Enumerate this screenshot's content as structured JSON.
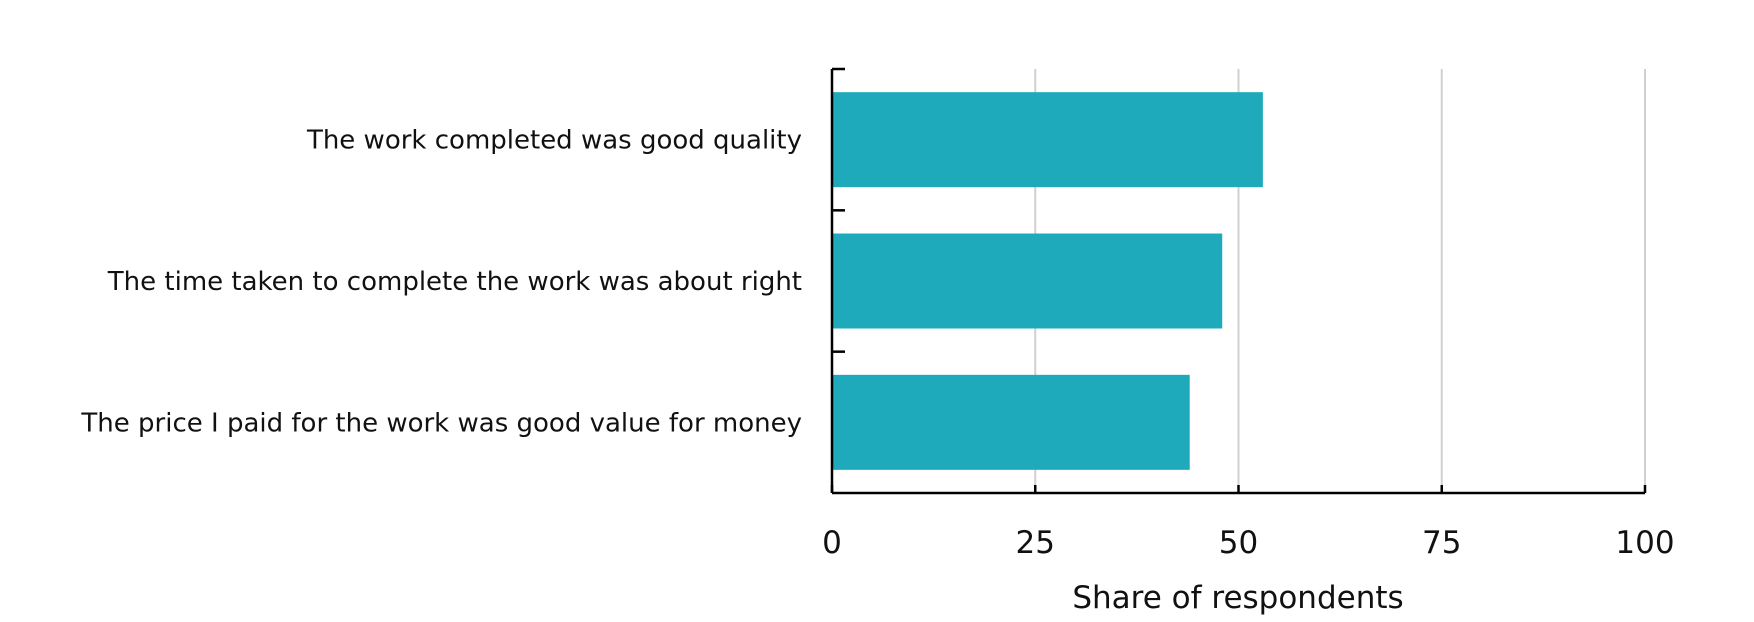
{
  "chart_data": {
    "type": "bar",
    "orientation": "horizontal",
    "title": "",
    "categories": [
      "The work completed was good quality",
      "The time taken to complete the work was about right",
      "The price I paid for the work was good value for money"
    ],
    "values": [
      53,
      48,
      44
    ],
    "xlabel": "Share of respondents",
    "ylabel": "",
    "xlim": [
      0,
      100
    ],
    "xticks": [
      0,
      25,
      50,
      75,
      100
    ],
    "xtick_labels": [
      "0",
      "25",
      "50",
      "75",
      "100"
    ],
    "grid": "vertical",
    "legend": "none",
    "bar_color": "#1faabc",
    "grid_color": "#d0d0d0",
    "axis_color": "#000000"
  }
}
